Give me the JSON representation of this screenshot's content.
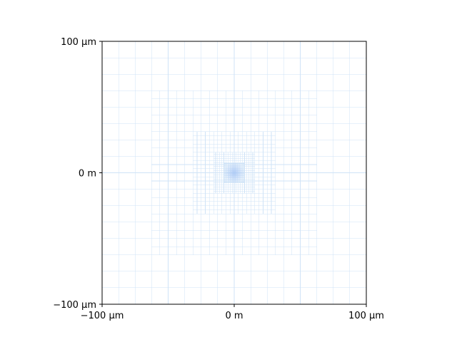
{
  "chart_data": {
    "type": "mesh",
    "title": "",
    "xlabel": "",
    "ylabel": "",
    "xlim": [
      -100,
      100
    ],
    "ylim": [
      -100,
      100
    ],
    "unit": "µm",
    "grid": true,
    "x_ticks": [
      {
        "value": -100,
        "label": "−100 µm"
      },
      {
        "value": 0,
        "label": "0 m"
      },
      {
        "value": 100,
        "label": "100 µm"
      }
    ],
    "y_ticks": [
      {
        "value": -100,
        "label": "−100 µm"
      },
      {
        "value": 0,
        "label": "0 m"
      },
      {
        "value": 100,
        "label": "100 µm"
      }
    ],
    "mesh_color": "#cfe3f7",
    "center_highlight_color": "#aac8f5",
    "refinement_levels": [
      {
        "half_extent": 100,
        "spacing": 12.5
      },
      {
        "half_extent": 62.5,
        "spacing": 6.25
      },
      {
        "half_extent": 31.25,
        "spacing": 3.125
      },
      {
        "half_extent": 15.625,
        "spacing": 1.5625
      },
      {
        "half_extent": 7.8125,
        "spacing": 0.78125
      }
    ]
  }
}
